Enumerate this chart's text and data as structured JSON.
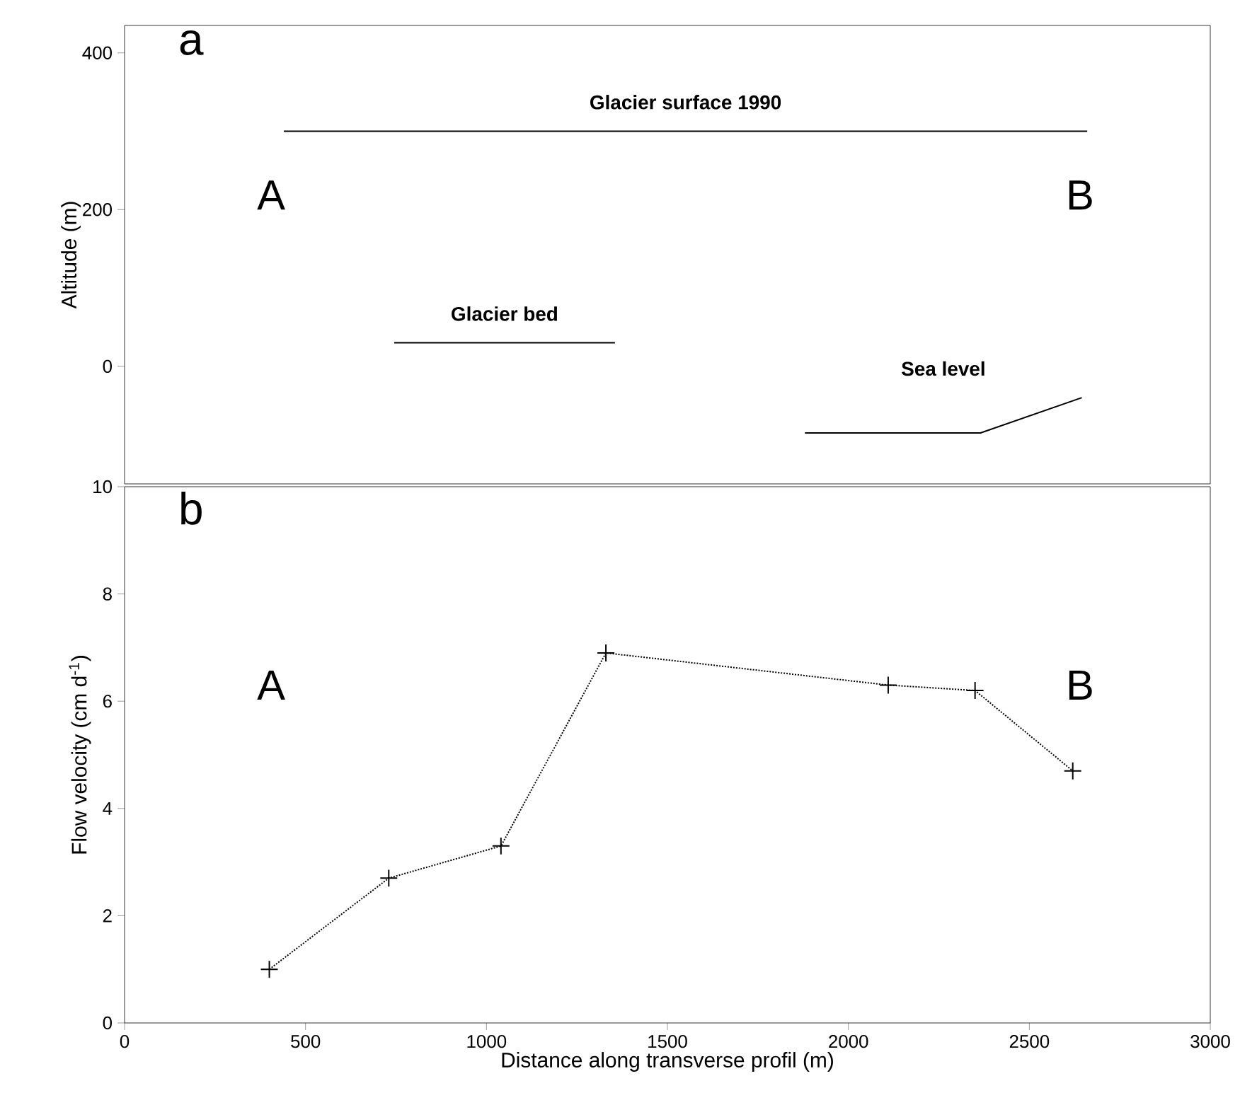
{
  "chart_data": [
    {
      "type": "line",
      "title": "a",
      "ylabel": "Altitude (m)",
      "xlim": [
        0,
        3000
      ],
      "ylim": [
        -150,
        435
      ],
      "yticks": [
        0,
        200,
        400
      ],
      "tick_labels": "y",
      "line_style": "solid",
      "marker": "none",
      "series": [
        {
          "name": "Glacier surface 1990",
          "color": "#000000",
          "x": [
            440,
            2660
          ],
          "values": [
            300,
            300
          ]
        },
        {
          "name": "Glacier bed",
          "color": "#000000",
          "x": [
            745,
            1355
          ],
          "values": [
            30,
            30
          ]
        },
        {
          "name": "Sea level",
          "color": "#000000",
          "x": [
            1880,
            2365,
            2645
          ],
          "values": [
            -85,
            -85,
            -40
          ]
        }
      ],
      "annotations": [
        "A",
        "B"
      ]
    },
    {
      "type": "line",
      "title": "b",
      "xlabel": "Distance along transverse profil (m)",
      "ylabel": "Flow velocity (cm d$^{-1}$)",
      "xlim": [
        0,
        3000
      ],
      "ylim": [
        0,
        10
      ],
      "xticks": [
        0,
        500,
        1000,
        1500,
        2000,
        2500,
        3000
      ],
      "yticks": [
        0,
        2,
        4,
        6,
        8,
        10
      ],
      "line_style": "dotted",
      "marker": "cross",
      "series": [
        {
          "color": "#000000",
          "x": [
            400,
            730,
            1040,
            1330,
            2110,
            2350,
            2620
          ],
          "values": [
            1.0,
            2.7,
            3.3,
            6.9,
            6.3,
            6.2,
            4.7
          ]
        }
      ],
      "annotations": [
        "A",
        "B"
      ]
    }
  ]
}
